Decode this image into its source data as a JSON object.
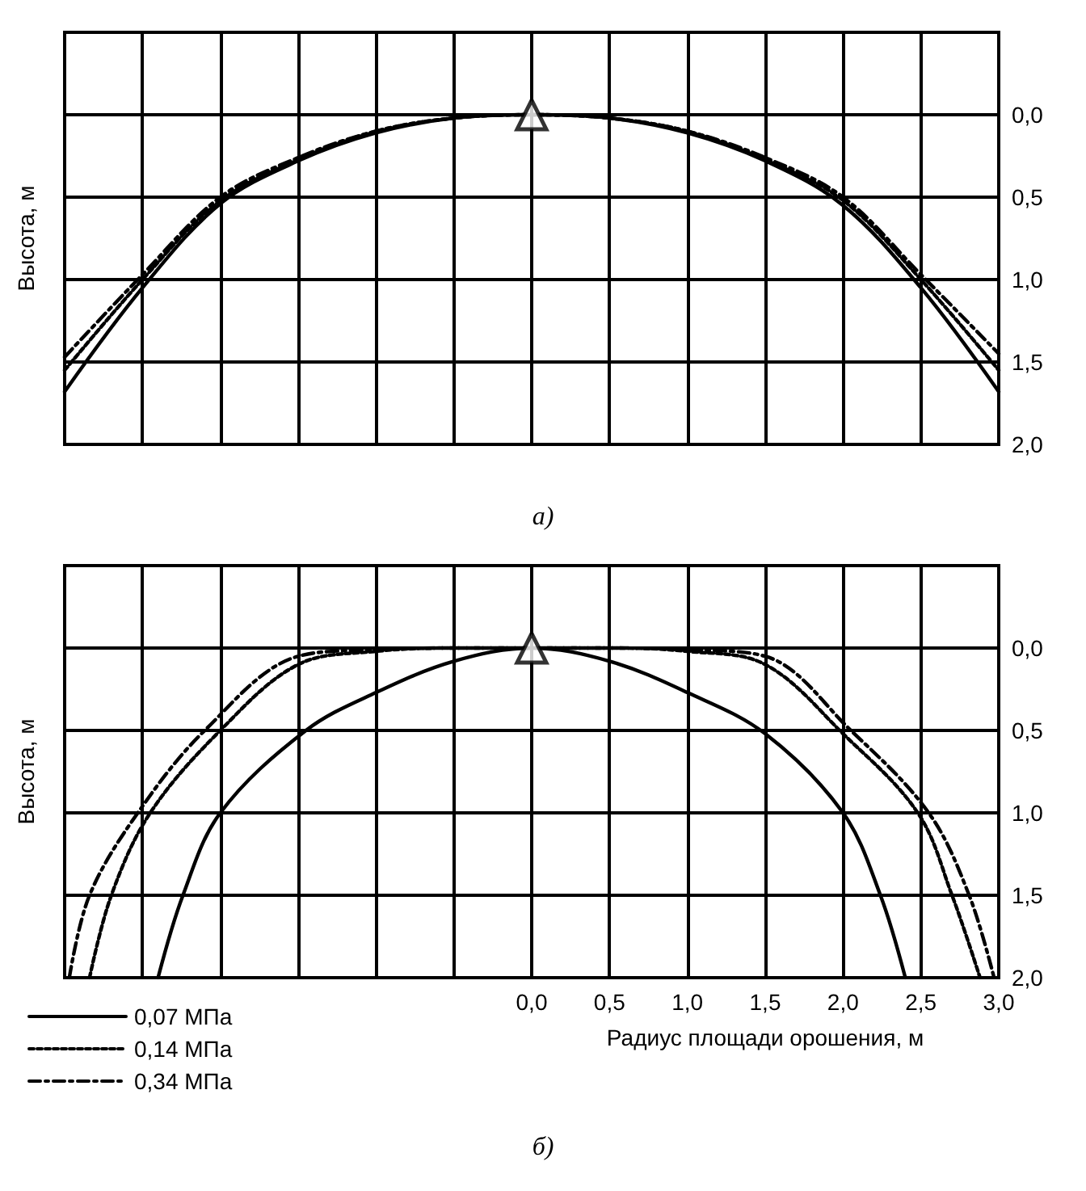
{
  "chart_data": [
    {
      "type": "line",
      "ylabel": "Высота, м",
      "annotations": [
        "а)"
      ],
      "xlim": [
        -3,
        3
      ],
      "ylim": [
        2.0,
        -0.5
      ],
      "xticks": [
        {
          "value": -3,
          "label": null
        },
        {
          "value": -2.5,
          "label": null
        },
        {
          "value": -2,
          "label": null
        },
        {
          "value": -1.5,
          "label": null
        },
        {
          "value": -1,
          "label": null
        },
        {
          "value": -0.5,
          "label": null
        },
        {
          "value": 0,
          "label": null
        },
        {
          "value": 0.5,
          "label": null
        },
        {
          "value": 1,
          "label": null
        },
        {
          "value": 1.5,
          "label": null
        },
        {
          "value": 2,
          "label": null
        },
        {
          "value": 2.5,
          "label": null
        },
        {
          "value": 3,
          "label": null
        }
      ],
      "yticks": [
        {
          "value": -0.5,
          "label": null
        },
        {
          "value": 0,
          "label": "0,0"
        },
        {
          "value": 0.5,
          "label": "0,5"
        },
        {
          "value": 1,
          "label": "1,0"
        },
        {
          "value": 1.5,
          "label": "1,5"
        },
        {
          "value": 2,
          "label": "2,0"
        }
      ],
      "tick_labels": "y",
      "grid": true,
      "legend": false,
      "marker": "none",
      "series": [
        {
          "color": "#000000",
          "line_style": "solid",
          "x": [
            -3,
            -2.5,
            -2,
            -1.5,
            -1,
            -0.5,
            0,
            0.5,
            1,
            1.5,
            2,
            2.5,
            3
          ],
          "values": [
            1.68,
            1.05,
            0.54,
            0.28,
            0.11,
            0.02,
            0,
            0.02,
            0.11,
            0.28,
            0.55,
            1.05,
            1.68
          ]
        },
        {
          "color": "#000000",
          "line_style": "dotted",
          "x": [
            -3,
            -2.5,
            -2,
            -1.5,
            -1,
            -0.5,
            0,
            0.5,
            1,
            1.5,
            2,
            2.5,
            3
          ],
          "values": [
            1.55,
            1.0,
            0.52,
            0.27,
            0.1,
            0.02,
            0,
            0.02,
            0.1,
            0.27,
            0.52,
            1.0,
            1.55
          ]
        },
        {
          "color": "#000000",
          "line_style": "dashed",
          "x": [
            -3,
            -2.5,
            -2,
            -1.5,
            -1,
            -0.5,
            0,
            0.5,
            1,
            1.5,
            2,
            2.5,
            3
          ],
          "values": [
            1.47,
            0.97,
            0.5,
            0.26,
            0.1,
            0.02,
            0,
            0.02,
            0.1,
            0.26,
            0.5,
            0.97,
            1.45
          ]
        },
        {
          "type": "scatter",
          "marker": "triangle",
          "color": "#000000",
          "x": [
            0
          ],
          "values": [
            0
          ]
        }
      ]
    },
    {
      "type": "line",
      "xlabel": "Радиус площади орошения, м",
      "ylabel": "Высота, м",
      "annotations": [
        "б)"
      ],
      "xlim": [
        -3,
        3
      ],
      "ylim": [
        2.0,
        -0.5
      ],
      "xticks": [
        {
          "value": -3,
          "label": null
        },
        {
          "value": -2.5,
          "label": null
        },
        {
          "value": -2,
          "label": null
        },
        {
          "value": -1.5,
          "label": null
        },
        {
          "value": -1,
          "label": null
        },
        {
          "value": -0.5,
          "label": null
        },
        {
          "value": 0,
          "label": "0,0"
        },
        {
          "value": 0.5,
          "label": "0,5"
        },
        {
          "value": 1,
          "label": "1,0"
        },
        {
          "value": 1.5,
          "label": "1,5"
        },
        {
          "value": 2,
          "label": "2,0"
        },
        {
          "value": 2.5,
          "label": "2,5"
        },
        {
          "value": 3,
          "label": "3,0"
        }
      ],
      "yticks": [
        {
          "value": -0.5,
          "label": null
        },
        {
          "value": 0,
          "label": "0,0"
        },
        {
          "value": 0.5,
          "label": "0,5"
        },
        {
          "value": 1,
          "label": "1,0"
        },
        {
          "value": 1.5,
          "label": "1,5"
        },
        {
          "value": 2,
          "label": "2,0"
        }
      ],
      "grid": true,
      "legend": "bottom left",
      "marker": "none",
      "series": [
        {
          "name": "0,07 МПа",
          "color": "#000000",
          "line_style": "solid",
          "x": [
            -2.4,
            -2.24,
            -2.0,
            -1.45,
            -1,
            -0.5,
            0,
            0.5,
            1,
            1.5,
            2.0,
            2.24,
            2.4
          ],
          "values": [
            2.0,
            1.5,
            1.0,
            0.5,
            0.27,
            0.08,
            0,
            0.08,
            0.27,
            0.52,
            1.0,
            1.5,
            2.0
          ]
        },
        {
          "name": "0,14 МПа",
          "color": "#000000",
          "line_style": "dotted",
          "x": [
            -2.84,
            -2.7,
            -2.45,
            -2.0,
            -1.5,
            -1,
            -0.5,
            0,
            0.5,
            1,
            1.5,
            2.0,
            2.48,
            2.7,
            2.88
          ],
          "values": [
            2.0,
            1.5,
            1.0,
            0.5,
            0.1,
            0.02,
            0,
            0,
            0,
            0.02,
            0.1,
            0.52,
            1.0,
            1.5,
            2.0
          ]
        },
        {
          "name": "0,34 МПа",
          "color": "#000000",
          "line_style": "dashed",
          "x": [
            -2.97,
            -2.84,
            -2.53,
            -2.1,
            -1.5,
            -1,
            -0.5,
            0,
            0.5,
            1,
            1.5,
            2.05,
            2.55,
            2.81,
            2.97
          ],
          "values": [
            2.0,
            1.5,
            1.0,
            0.5,
            0.05,
            0.01,
            0,
            0,
            0,
            0.01,
            0.05,
            0.5,
            1.0,
            1.5,
            2.0
          ]
        },
        {
          "type": "scatter",
          "marker": "triangle",
          "color": "#000000",
          "x": [
            0
          ],
          "values": [
            0
          ]
        }
      ]
    }
  ]
}
